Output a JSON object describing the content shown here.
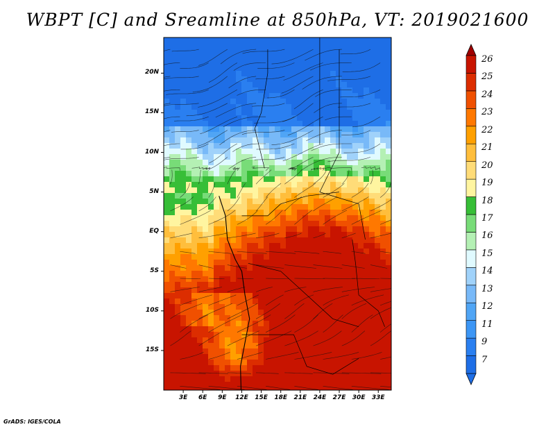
{
  "title": "WBPT [C] and Sreamline at 850hPa, VT: 2019021600",
  "credit": "GrADS: IGES/COLA",
  "map": {
    "lon_range": [
      0,
      35
    ],
    "lat_range": [
      -20,
      24.5
    ],
    "lat_ticks": [
      {
        "value": 20,
        "label": "20N"
      },
      {
        "value": 15,
        "label": "15N"
      },
      {
        "value": 10,
        "label": "10N"
      },
      {
        "value": 5,
        "label": "5N"
      },
      {
        "value": 0,
        "label": "EQ"
      },
      {
        "value": -5,
        "label": "5S"
      },
      {
        "value": -10,
        "label": "10S"
      },
      {
        "value": -15,
        "label": "15S"
      }
    ],
    "lon_ticks": [
      {
        "value": 3,
        "label": "3E"
      },
      {
        "value": 6,
        "label": "6E"
      },
      {
        "value": 9,
        "label": "9E"
      },
      {
        "value": 12,
        "label": "12E"
      },
      {
        "value": 15,
        "label": "15E"
      },
      {
        "value": 18,
        "label": "18E"
      },
      {
        "value": 21,
        "label": "21E"
      },
      {
        "value": 24,
        "label": "24E"
      },
      {
        "value": 27,
        "label": "27E"
      },
      {
        "value": 30,
        "label": "30E"
      },
      {
        "value": 33,
        "label": "33E"
      }
    ]
  },
  "colorbar": {
    "levels": [
      {
        "label": "7",
        "color": "#1e6ee6"
      },
      {
        "label": "9",
        "color": "#2a7ff0"
      },
      {
        "label": "11",
        "color": "#3c96f5"
      },
      {
        "label": "12",
        "color": "#50a5f5"
      },
      {
        "label": "13",
        "color": "#78b9f8"
      },
      {
        "label": "14",
        "color": "#a0d2fa"
      },
      {
        "label": "15",
        "color": "#e0faff"
      },
      {
        "label": "16",
        "color": "#b4f0b4"
      },
      {
        "label": "17",
        "color": "#78dc78"
      },
      {
        "label": "18",
        "color": "#37be37"
      },
      {
        "label": "19",
        "color": "#fff5a0"
      },
      {
        "label": "20",
        "color": "#ffdc78"
      },
      {
        "label": "21",
        "color": "#ffbe3c"
      },
      {
        "label": "22",
        "color": "#ffa000"
      },
      {
        "label": "23",
        "color": "#ff7800"
      },
      {
        "label": "24",
        "color": "#f05000"
      },
      {
        "label": "25",
        "color": "#dc2d00"
      },
      {
        "label": "26",
        "color": "#c81400"
      }
    ],
    "over_color": "#a00000",
    "under_color": "#1e6ee6"
  }
}
